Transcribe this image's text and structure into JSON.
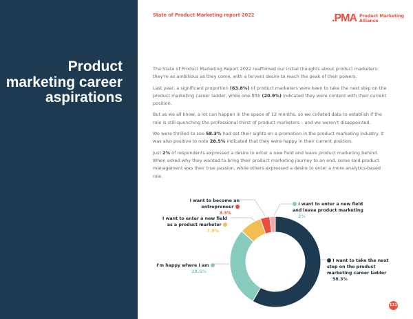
{
  "header": {
    "report_title": "State of Product Marketing report 2022",
    "logo_mark": ".PMA",
    "logo_text_1": "Product Marketing",
    "logo_text_2": "Alliance",
    "accent": "#e8503f"
  },
  "sidebar": {
    "title": "Product marketing career aspirations",
    "bg": "#1d3a51"
  },
  "body": {
    "p1": "The State of Product Marketing Report 2022 reaffirmed our initial thoughts about product marketers: they're as ambitious as they come, with a fervent desire to reach the peak of their powers.",
    "p2a": "Last year, a significant proportion ",
    "p2b": "(63.8%)",
    "p2c": " of product marketers were keen to take the next step on the product marketing career ladder, while one-fifth ",
    "p2d": "(20.9%)",
    "p2e": " indicated they were content with their current position.",
    "p3": "But as we all know, a lot can happen in the space of 12 months, so we collated data to establish if the role is still quenching the professional thirst of product marketers – and we weren't disappointed.",
    "p4a": "We were thrilled to see ",
    "p4b": "58.3%",
    "p4c": " had set their sights on a promotion in the product marketing industry. It was also positive to note ",
    "p4d": "28.5%",
    "p4e": " indicated that they were happy in their current position.",
    "p5a": "Just ",
    "p5b": "2%",
    "p5c": " of respondents expressed a desire to enter a new field and leave product marketing behind. When asked why they wanted to bring their product marketing journey to an end, some said product management was their true passion, while others expressed a desire to enter a more analytics-based role."
  },
  "chart_data": {
    "type": "pie",
    "variant": "donut",
    "categories": [
      "I want to take the next step on the product marketing career ladder",
      "I'm happy where I am",
      "I want to enter a new field as a product marketer",
      "I want to become an entrepreneur",
      "I want to enter a new field and leave product marketing"
    ],
    "values": [
      58.3,
      28.5,
      7.9,
      3.3,
      2
    ],
    "value_labels": [
      "58.3%",
      "28.5%",
      "7.9%",
      "3.3%",
      "2%"
    ],
    "colors": [
      "#1d3a51",
      "#86cbbd",
      "#f2bd52",
      "#ee4a3e",
      "#f4a7a8"
    ],
    "title": "",
    "legend_position": "callouts"
  },
  "page_number": "111"
}
